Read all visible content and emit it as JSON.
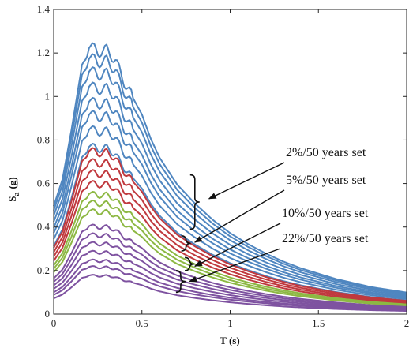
{
  "chart_data": {
    "type": "line",
    "xlabel": "T (s)",
    "ylabel_main": "S",
    "ylabel_sub": "a",
    "ylabel_unit": "(g)",
    "xlim": [
      0,
      2
    ],
    "ylim": [
      0,
      1.4
    ],
    "x_ticks": [
      0,
      0.5,
      1,
      1.5,
      2
    ],
    "x_tick_labels": [
      "0",
      "0.5",
      "1",
      "1.5",
      "2"
    ],
    "y_ticks": [
      0,
      0.2,
      0.4,
      0.6,
      0.8,
      1,
      1.2,
      1.4
    ],
    "y_tick_labels": [
      "0",
      "0.2",
      "0.4",
      "0.6",
      "0.8",
      "1",
      "1.2",
      "1.4"
    ],
    "grid": false,
    "base_shape": {
      "T": [
        0,
        0.05,
        0.1,
        0.15,
        0.2,
        0.25,
        0.3,
        0.35,
        0.4,
        0.45,
        0.5,
        0.55,
        0.6,
        0.7,
        0.8,
        0.9,
        1.0,
        1.1,
        1.2,
        1.3,
        1.4,
        1.5,
        1.6,
        1.7,
        1.8,
        1.9,
        2.0
      ],
      "sa": [
        0.4,
        0.5,
        0.68,
        0.88,
        1.0,
        0.97,
        0.98,
        0.94,
        0.86,
        0.8,
        0.74,
        0.65,
        0.58,
        0.48,
        0.41,
        0.35,
        0.3,
        0.26,
        0.225,
        0.195,
        0.17,
        0.15,
        0.13,
        0.115,
        0.1,
        0.09,
        0.08
      ]
    },
    "series": [
      {
        "group": "2%/50 years set",
        "color": "#4f86c0",
        "peak": 1.24
      },
      {
        "group": "2%/50 years set",
        "color": "#4f86c0",
        "peak": 1.19
      },
      {
        "group": "2%/50 years set",
        "color": "#4f86c0",
        "peak": 1.13
      },
      {
        "group": "2%/50 years set",
        "color": "#4f86c0",
        "peak": 1.06
      },
      {
        "group": "2%/50 years set",
        "color": "#4f86c0",
        "peak": 0.99
      },
      {
        "group": "2%/50 years set",
        "color": "#4f86c0",
        "peak": 0.93
      },
      {
        "group": "2%/50 years set",
        "color": "#4f86c0",
        "peak": 0.86
      },
      {
        "group": "2%/50 years set",
        "color": "#4f86c0",
        "peak": 0.78
      },
      {
        "group": "5%/50 years set",
        "color": "#c0393e",
        "peak": 0.76
      },
      {
        "group": "5%/50 years set",
        "color": "#c0393e",
        "peak": 0.71
      },
      {
        "group": "5%/50 years set",
        "color": "#c0393e",
        "peak": 0.66
      },
      {
        "group": "5%/50 years set",
        "color": "#c0393e",
        "peak": 0.61
      },
      {
        "group": "10%/50 years set",
        "color": "#8db843",
        "peak": 0.56
      },
      {
        "group": "10%/50 years set",
        "color": "#8db843",
        "peak": 0.52
      },
      {
        "group": "10%/50 years set",
        "color": "#8db843",
        "peak": 0.48
      },
      {
        "group": "22%/50 years set",
        "color": "#7e52a0",
        "peak": 0.41
      },
      {
        "group": "22%/50 years set",
        "color": "#7e52a0",
        "peak": 0.37
      },
      {
        "group": "22%/50 years set",
        "color": "#7e52a0",
        "peak": 0.33
      },
      {
        "group": "22%/50 years set",
        "color": "#7e52a0",
        "peak": 0.29
      },
      {
        "group": "22%/50 years set",
        "color": "#7e52a0",
        "peak": 0.25
      },
      {
        "group": "22%/50 years set",
        "color": "#7e52a0",
        "peak": 0.22
      },
      {
        "group": "22%/50 years set",
        "color": "#7e52a0",
        "peak": 0.18
      }
    ],
    "annotations": [
      {
        "text": "2%/50 years set",
        "arrow_to_T": 0.88,
        "arrow_to_Sa": 0.53,
        "bracket_Sa_range": [
          0.39,
          0.64
        ],
        "bracket_T": 0.8
      },
      {
        "text": "5%/50 years set",
        "arrow_to_T": 0.8,
        "arrow_to_Sa": 0.33,
        "bracket_Sa_range": [
          0.29,
          0.36
        ],
        "bracket_T": 0.75
      },
      {
        "text": "10%/50 years set",
        "arrow_to_T": 0.8,
        "arrow_to_Sa": 0.22,
        "bracket_Sa_range": [
          0.2,
          0.26
        ],
        "bracket_T": 0.77
      },
      {
        "text": "22%/50 years set",
        "arrow_to_T": 0.77,
        "arrow_to_Sa": 0.15,
        "bracket_Sa_range": [
          0.1,
          0.2
        ],
        "bracket_T": 0.72
      }
    ]
  }
}
